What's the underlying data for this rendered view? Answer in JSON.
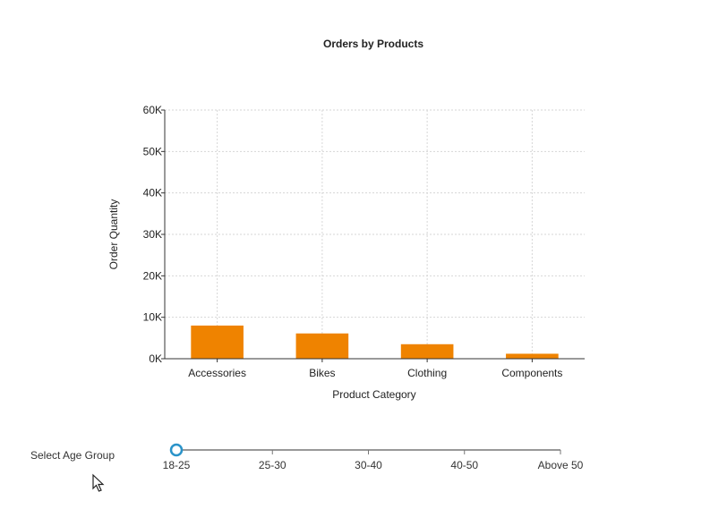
{
  "chart_data": {
    "type": "bar",
    "title": "Orders by Products",
    "xlabel": "Product Category",
    "ylabel": "Order Quantity",
    "categories": [
      "Accessories",
      "Bikes",
      "Clothing",
      "Components"
    ],
    "values": [
      8000,
      6100,
      3500,
      1200
    ],
    "ylim": [
      0,
      60000
    ],
    "yticks": [
      0,
      10000,
      20000,
      30000,
      40000,
      50000,
      60000
    ],
    "ytick_labels": [
      "0K",
      "10K",
      "20K",
      "30K",
      "40K",
      "50K",
      "60K"
    ],
    "grid": true,
    "bar_color": "#ef8300"
  },
  "slider": {
    "caption": "Select Age Group",
    "options": [
      "18-25",
      "25-30",
      "30-40",
      "40-50",
      "Above 50"
    ],
    "selected_index": 0,
    "accent_color": "#2a93c9"
  },
  "cursor": {
    "icon": "mouse-pointer-icon"
  }
}
